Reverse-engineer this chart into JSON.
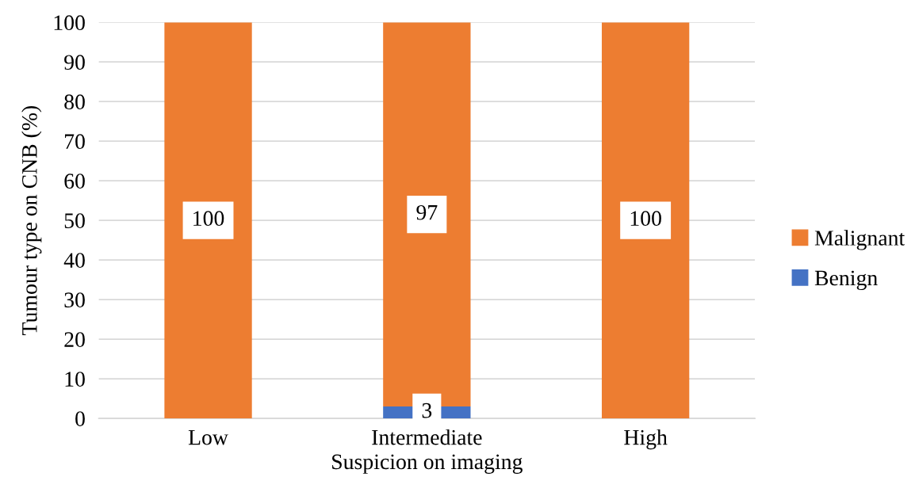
{
  "chart_data": {
    "type": "bar",
    "stacked": true,
    "categories": [
      "Low",
      "Intermediate",
      "High"
    ],
    "xlabel": "Suspicion on imaging",
    "ylabel": "Tumour type on CNB (%)",
    "series": [
      {
        "name": "Benign",
        "color": "#4472c4",
        "values": [
          0,
          3,
          0
        ],
        "value_labels": [
          null,
          "3",
          null
        ]
      },
      {
        "name": "Malignant",
        "color": "#ed7d31",
        "values": [
          100,
          97,
          100
        ],
        "value_labels": [
          "100",
          "97",
          "100"
        ]
      }
    ],
    "ylim": [
      0,
      100
    ],
    "yticks": [
      0,
      10,
      20,
      30,
      40,
      50,
      60,
      70,
      80,
      90,
      100
    ],
    "grid": "y",
    "legend": "right"
  }
}
